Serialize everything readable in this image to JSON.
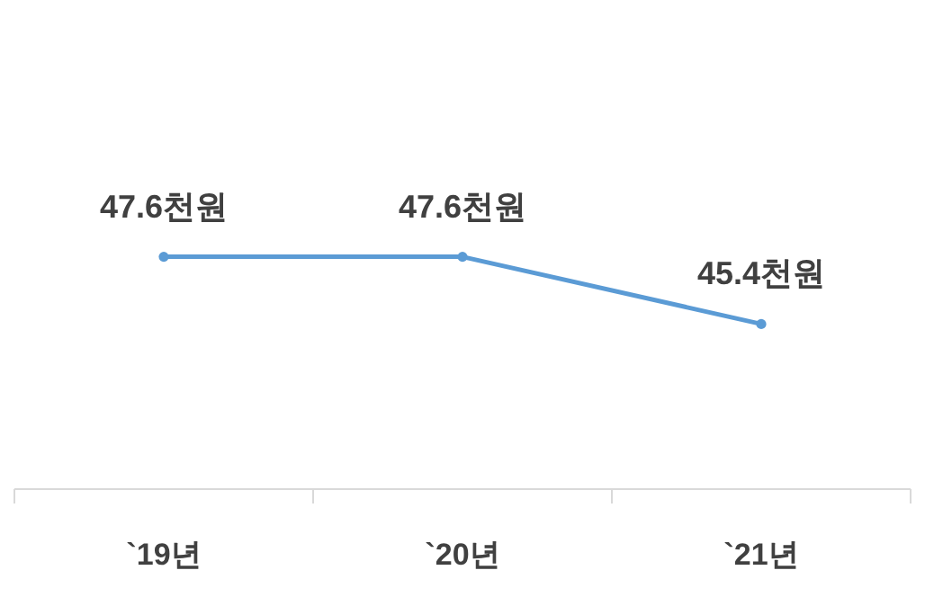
{
  "chart_data": {
    "type": "line",
    "categories": [
      "`19년",
      "`20년",
      "`21년"
    ],
    "series": [
      {
        "color": "#5b9bd5",
        "values": [
          47.6,
          47.6,
          45.4
        ],
        "value_labels": [
          "47.6천원",
          "47.6천원",
          "45.4천원"
        ]
      }
    ],
    "ylim": [
      40,
      56
    ],
    "tick_labels": "x",
    "marker": "circle"
  }
}
